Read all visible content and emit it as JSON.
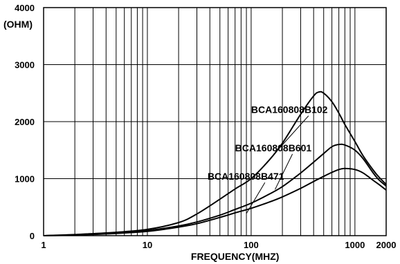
{
  "chart_data": {
    "type": "line",
    "title": "",
    "xlabel": "FREQUENCY(MHZ)",
    "ylabel": "(OHM)",
    "x_scale": "log",
    "xlim": [
      1,
      2000
    ],
    "ylim": [
      0,
      4000
    ],
    "x_tick_labels": [
      "1",
      "10",
      "100",
      "1000",
      "2000"
    ],
    "x_ticks": [
      1,
      10,
      100,
      1000,
      2000
    ],
    "y_tick_labels": [
      "0",
      "1000",
      "2000",
      "3000",
      "4000"
    ],
    "y_ticks": [
      0,
      1000,
      2000,
      3000,
      4000
    ],
    "grid": true,
    "series": [
      {
        "name": "BCA160808B102",
        "x": [
          1,
          2,
          5,
          10,
          20,
          30,
          50,
          70,
          100,
          150,
          200,
          300,
          400,
          450,
          500,
          600,
          700,
          800,
          1000,
          1200,
          1500,
          1700,
          2000
        ],
        "values": [
          0,
          20,
          60,
          110,
          230,
          380,
          640,
          820,
          1000,
          1330,
          1620,
          2130,
          2450,
          2520,
          2500,
          2350,
          2150,
          1950,
          1650,
          1400,
          1150,
          1030,
          900
        ]
      },
      {
        "name": "BCA160808B601",
        "x": [
          1,
          2,
          5,
          10,
          20,
          30,
          50,
          70,
          100,
          150,
          200,
          300,
          400,
          500,
          600,
          700,
          800,
          1000,
          1200,
          1500,
          1700,
          2000
        ],
        "values": [
          0,
          15,
          50,
          90,
          170,
          240,
          360,
          460,
          570,
          730,
          860,
          1100,
          1290,
          1440,
          1560,
          1600,
          1590,
          1500,
          1350,
          1100,
          980,
          870
        ]
      },
      {
        "name": "BCA160808B471",
        "x": [
          1,
          2,
          5,
          10,
          20,
          30,
          50,
          70,
          100,
          150,
          200,
          300,
          400,
          500,
          600,
          700,
          800,
          1000,
          1200,
          1500,
          1700,
          2000
        ],
        "values": [
          0,
          12,
          40,
          75,
          150,
          210,
          320,
          400,
          480,
          590,
          680,
          830,
          950,
          1040,
          1110,
          1160,
          1180,
          1160,
          1100,
          970,
          900,
          800
        ]
      }
    ],
    "annotations": [
      {
        "text": "BCA160808B102",
        "series": "BCA160808B102",
        "label_x": 100,
        "label_y": 2150,
        "point_x": 180,
        "point_y": 1500
      },
      {
        "text": "BCA160808B601",
        "series": "BCA160808B601",
        "label_x": 70,
        "label_y": 1480,
        "point_x": 170,
        "point_y": 810
      },
      {
        "text": "BCA160808B471",
        "series": "BCA160808B471",
        "label_x": 38,
        "label_y": 980,
        "point_x": 90,
        "point_y": 390
      }
    ],
    "colors": {
      "line": "#000000",
      "grid": "#000000",
      "background": "#ffffff"
    }
  }
}
